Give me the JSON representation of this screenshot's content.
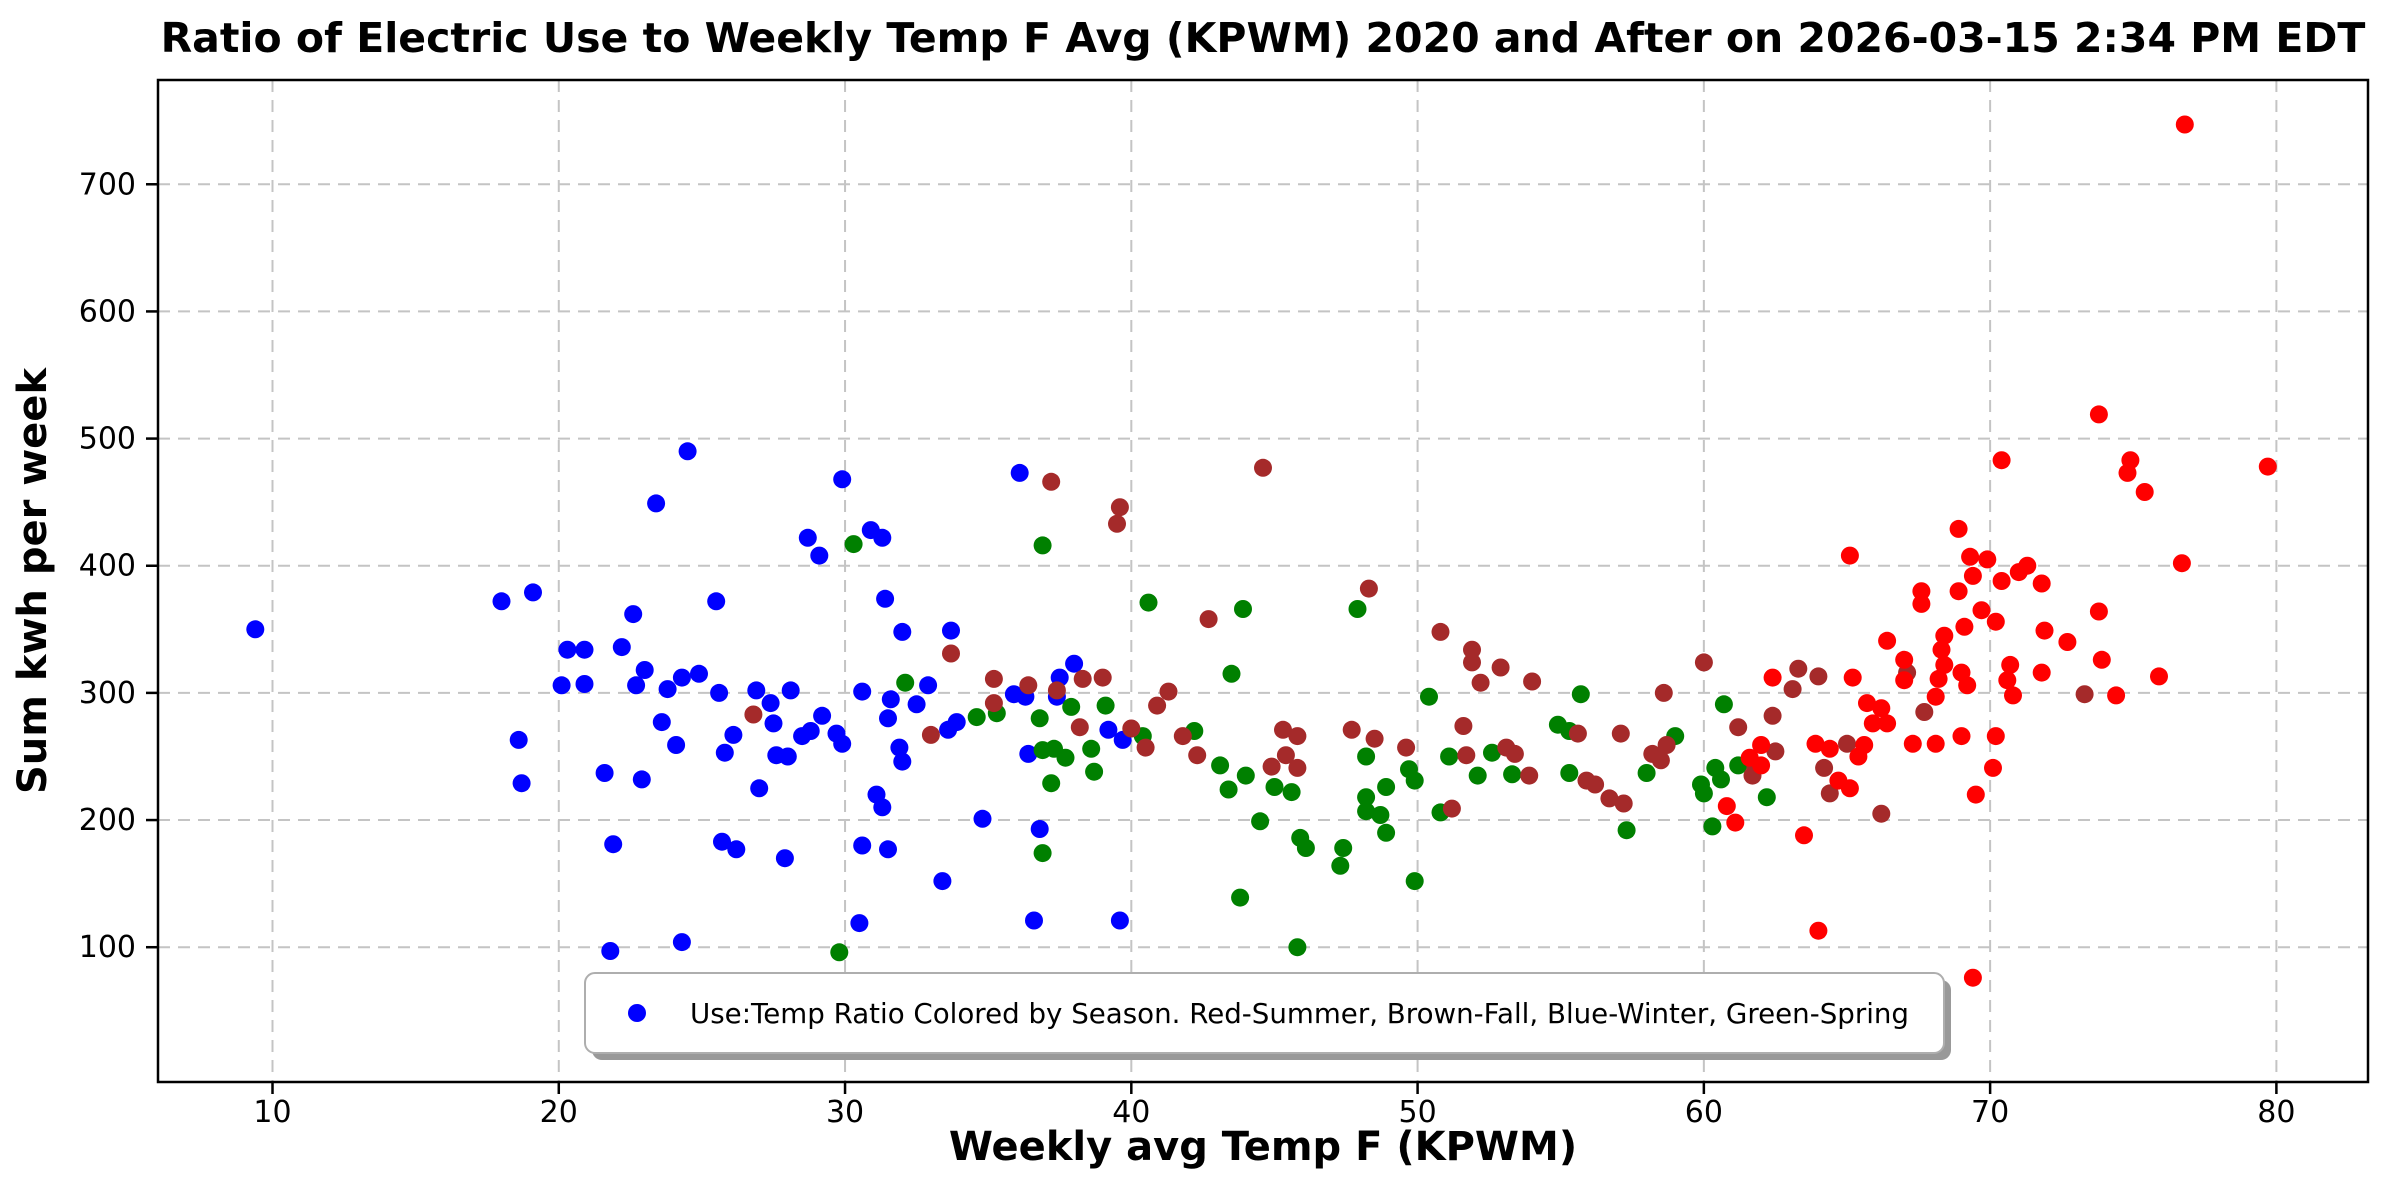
{
  "title": "Ratio of Electric Use to Weekly Temp F Avg (KPWM) 2020 and After on 2026-03-15 2:34 PM EDT",
  "chart_data": {
    "type": "scatter",
    "title": "Ratio of Electric Use to Weekly Temp F Avg (KPWM) 2020 and After on 2026-03-15 2:34 PM EDT",
    "xlabel": "Weekly avg Temp F (KPWM)",
    "ylabel": "Sum kwh per week",
    "xlim": [
      6.0,
      83.2
    ],
    "ylim": [
      -6,
      782
    ],
    "xticks": [
      10,
      20,
      30,
      40,
      50,
      60,
      70,
      80
    ],
    "yticks": [
      100,
      200,
      300,
      400,
      500,
      600,
      700
    ],
    "grid": true,
    "grid_style": "dashed",
    "grid_color": "#c4c4c4",
    "background": "#ffffff",
    "legend": {
      "text": "Use:Temp Ratio Colored by Season. Red-Summer, Brown-Fall, Blue-Winter, Green-Spring",
      "marker_color": "#0000ff",
      "position": "lower center"
    },
    "series": [
      {
        "name": "Winter",
        "color": "#0000ff",
        "points": [
          [
            9.4,
            350
          ],
          [
            18.0,
            372
          ],
          [
            19.1,
            379
          ],
          [
            20.3,
            334
          ],
          [
            20.9,
            334
          ],
          [
            20.1,
            306
          ],
          [
            20.9,
            307
          ],
          [
            24.5,
            490
          ],
          [
            23.4,
            449
          ],
          [
            29.9,
            468
          ],
          [
            36.1,
            473
          ],
          [
            28.7,
            422
          ],
          [
            29.1,
            408
          ],
          [
            30.9,
            428
          ],
          [
            31.3,
            422
          ],
          [
            25.5,
            372
          ],
          [
            22.6,
            362
          ],
          [
            22.2,
            336
          ],
          [
            31.4,
            374
          ],
          [
            32.0,
            348
          ],
          [
            33.7,
            349
          ],
          [
            23.0,
            318
          ],
          [
            24.3,
            312
          ],
          [
            24.9,
            315
          ],
          [
            22.7,
            306
          ],
          [
            23.8,
            303
          ],
          [
            25.6,
            300
          ],
          [
            26.9,
            302
          ],
          [
            28.1,
            302
          ],
          [
            30.6,
            301
          ],
          [
            31.6,
            295
          ],
          [
            32.9,
            306
          ],
          [
            35.9,
            299
          ],
          [
            36.3,
            297
          ],
          [
            38.0,
            323
          ],
          [
            37.5,
            312
          ],
          [
            37.4,
            297
          ],
          [
            39.2,
            271
          ],
          [
            39.7,
            263
          ],
          [
            18.6,
            263
          ],
          [
            18.7,
            229
          ],
          [
            21.6,
            237
          ],
          [
            22.9,
            232
          ],
          [
            23.6,
            277
          ],
          [
            24.1,
            259
          ],
          [
            26.1,
            267
          ],
          [
            27.4,
            292
          ],
          [
            27.5,
            276
          ],
          [
            25.8,
            253
          ],
          [
            27.6,
            251
          ],
          [
            28.0,
            250
          ],
          [
            28.5,
            266
          ],
          [
            28.8,
            270
          ],
          [
            29.2,
            282
          ],
          [
            29.7,
            268
          ],
          [
            29.9,
            260
          ],
          [
            31.5,
            280
          ],
          [
            31.9,
            257
          ],
          [
            32.0,
            246
          ],
          [
            32.5,
            291
          ],
          [
            33.6,
            271
          ],
          [
            33.9,
            277
          ],
          [
            36.4,
            252
          ],
          [
            31.1,
            220
          ],
          [
            31.3,
            210
          ],
          [
            27.0,
            225
          ],
          [
            34.8,
            201
          ],
          [
            21.9,
            181
          ],
          [
            25.7,
            183
          ],
          [
            26.2,
            177
          ],
          [
            27.9,
            170
          ],
          [
            30.6,
            180
          ],
          [
            31.5,
            177
          ],
          [
            33.4,
            152
          ],
          [
            30.5,
            119
          ],
          [
            24.3,
            104
          ],
          [
            36.6,
            121
          ],
          [
            36.8,
            193
          ],
          [
            39.6,
            121
          ],
          [
            21.8,
            97
          ]
        ]
      },
      {
        "name": "Spring",
        "color": "#008000",
        "points": [
          [
            30.3,
            417
          ],
          [
            36.9,
            416
          ],
          [
            40.6,
            371
          ],
          [
            43.9,
            366
          ],
          [
            47.9,
            366
          ],
          [
            43.5,
            315
          ],
          [
            32.1,
            308
          ],
          [
            34.6,
            281
          ],
          [
            35.3,
            284
          ],
          [
            36.8,
            280
          ],
          [
            36.9,
            255
          ],
          [
            37.9,
            289
          ],
          [
            39.1,
            290
          ],
          [
            40.4,
            266
          ],
          [
            42.2,
            270
          ],
          [
            37.3,
            256
          ],
          [
            37.7,
            249
          ],
          [
            38.6,
            256
          ],
          [
            38.7,
            238
          ],
          [
            37.2,
            229
          ],
          [
            43.1,
            243
          ],
          [
            44.0,
            235
          ],
          [
            43.4,
            224
          ],
          [
            45.0,
            226
          ],
          [
            45.6,
            222
          ],
          [
            48.2,
            250
          ],
          [
            49.7,
            240
          ],
          [
            49.9,
            231
          ],
          [
            48.2,
            218
          ],
          [
            48.9,
            226
          ],
          [
            48.2,
            207
          ],
          [
            48.7,
            204
          ],
          [
            48.9,
            190
          ],
          [
            44.5,
            199
          ],
          [
            45.9,
            186
          ],
          [
            46.1,
            178
          ],
          [
            47.4,
            178
          ],
          [
            47.3,
            164
          ],
          [
            49.9,
            152
          ],
          [
            43.8,
            139
          ],
          [
            45.8,
            100
          ],
          [
            36.9,
            174
          ],
          [
            50.4,
            297
          ],
          [
            51.1,
            250
          ],
          [
            50.8,
            206
          ],
          [
            52.6,
            253
          ],
          [
            53.3,
            236
          ],
          [
            54.9,
            275
          ],
          [
            55.3,
            270
          ],
          [
            55.3,
            237
          ],
          [
            58.0,
            237
          ],
          [
            57.3,
            192
          ],
          [
            59.0,
            266
          ],
          [
            60.7,
            291
          ],
          [
            61.2,
            243
          ],
          [
            59.9,
            228
          ],
          [
            60.0,
            221
          ],
          [
            60.4,
            241
          ],
          [
            60.6,
            232
          ],
          [
            60.3,
            195
          ],
          [
            62.2,
            218
          ],
          [
            52.1,
            235
          ],
          [
            55.7,
            299
          ],
          [
            29.8,
            96
          ]
        ]
      },
      {
        "name": "Fall",
        "color": "#a52a2a",
        "points": [
          [
            26.8,
            283
          ],
          [
            33.0,
            267
          ],
          [
            33.7,
            331
          ],
          [
            35.2,
            311
          ],
          [
            35.2,
            292
          ],
          [
            36.4,
            306
          ],
          [
            44.6,
            477
          ],
          [
            37.2,
            466
          ],
          [
            39.6,
            446
          ],
          [
            39.5,
            433
          ],
          [
            42.7,
            358
          ],
          [
            48.3,
            382
          ],
          [
            50.8,
            348
          ],
          [
            51.9,
            334
          ],
          [
            51.9,
            324
          ],
          [
            52.2,
            308
          ],
          [
            38.3,
            311
          ],
          [
            39.0,
            312
          ],
          [
            37.4,
            302
          ],
          [
            41.3,
            301
          ],
          [
            52.9,
            320
          ],
          [
            54.0,
            309
          ],
          [
            58.6,
            300
          ],
          [
            60.0,
            324
          ],
          [
            63.3,
            319
          ],
          [
            64.0,
            313
          ],
          [
            63.1,
            303
          ],
          [
            67.1,
            316
          ],
          [
            40.9,
            290
          ],
          [
            38.2,
            273
          ],
          [
            40.0,
            272
          ],
          [
            40.5,
            257
          ],
          [
            41.8,
            266
          ],
          [
            42.3,
            251
          ],
          [
            44.9,
            242
          ],
          [
            45.3,
            271
          ],
          [
            45.8,
            266
          ],
          [
            45.4,
            251
          ],
          [
            45.8,
            241
          ],
          [
            47.7,
            271
          ],
          [
            48.5,
            264
          ],
          [
            49.6,
            257
          ],
          [
            51.6,
            274
          ],
          [
            51.7,
            251
          ],
          [
            51.2,
            209
          ],
          [
            53.1,
            257
          ],
          [
            53.4,
            252
          ],
          [
            53.9,
            235
          ],
          [
            55.6,
            268
          ],
          [
            55.9,
            231
          ],
          [
            56.2,
            228
          ],
          [
            57.1,
            268
          ],
          [
            56.7,
            217
          ],
          [
            57.2,
            213
          ],
          [
            58.2,
            252
          ],
          [
            58.5,
            247
          ],
          [
            58.7,
            259
          ],
          [
            61.2,
            273
          ],
          [
            62.4,
            282
          ],
          [
            62.5,
            254
          ],
          [
            61.8,
            242
          ],
          [
            61.7,
            235
          ],
          [
            64.2,
            241
          ],
          [
            64.4,
            221
          ],
          [
            65.0,
            260
          ],
          [
            66.2,
            205
          ],
          [
            67.7,
            285
          ],
          [
            73.3,
            299
          ]
        ]
      },
      {
        "name": "Summer",
        "color": "#ff0000",
        "points": [
          [
            76.8,
            747
          ],
          [
            73.8,
            519
          ],
          [
            70.4,
            483
          ],
          [
            74.9,
            483
          ],
          [
            74.8,
            473
          ],
          [
            75.4,
            458
          ],
          [
            79.7,
            478
          ],
          [
            68.9,
            429
          ],
          [
            69.3,
            407
          ],
          [
            69.9,
            405
          ],
          [
            71.3,
            400
          ],
          [
            69.4,
            392
          ],
          [
            68.9,
            380
          ],
          [
            67.6,
            380
          ],
          [
            67.6,
            370
          ],
          [
            76.7,
            402
          ],
          [
            70.4,
            388
          ],
          [
            71.0,
            395
          ],
          [
            71.8,
            386
          ],
          [
            69.7,
            365
          ],
          [
            70.2,
            356
          ],
          [
            73.8,
            364
          ],
          [
            69.1,
            352
          ],
          [
            71.9,
            349
          ],
          [
            72.7,
            340
          ],
          [
            68.4,
            345
          ],
          [
            68.3,
            334
          ],
          [
            68.4,
            322
          ],
          [
            69.0,
            316
          ],
          [
            68.2,
            311
          ],
          [
            70.7,
            322
          ],
          [
            71.8,
            316
          ],
          [
            75.9,
            313
          ],
          [
            73.9,
            326
          ],
          [
            70.6,
            310
          ],
          [
            69.2,
            306
          ],
          [
            65.1,
            408
          ],
          [
            66.4,
            341
          ],
          [
            67.0,
            326
          ],
          [
            62.4,
            312
          ],
          [
            65.2,
            312
          ],
          [
            67.0,
            310
          ],
          [
            61.6,
            249
          ],
          [
            62.0,
            243
          ],
          [
            62.0,
            259
          ],
          [
            60.8,
            211
          ],
          [
            61.1,
            198
          ],
          [
            63.5,
            188
          ],
          [
            64.0,
            113
          ],
          [
            65.7,
            292
          ],
          [
            65.9,
            276
          ],
          [
            66.2,
            288
          ],
          [
            63.9,
            260
          ],
          [
            64.4,
            256
          ],
          [
            64.7,
            231
          ],
          [
            65.1,
            225
          ],
          [
            65.4,
            250
          ],
          [
            65.6,
            259
          ],
          [
            66.4,
            276
          ],
          [
            67.3,
            260
          ],
          [
            68.1,
            297
          ],
          [
            70.8,
            298
          ],
          [
            68.1,
            260
          ],
          [
            69.0,
            266
          ],
          [
            70.2,
            266
          ],
          [
            70.1,
            241
          ],
          [
            69.5,
            220
          ],
          [
            69.4,
            76
          ],
          [
            74.4,
            298
          ]
        ]
      }
    ]
  }
}
